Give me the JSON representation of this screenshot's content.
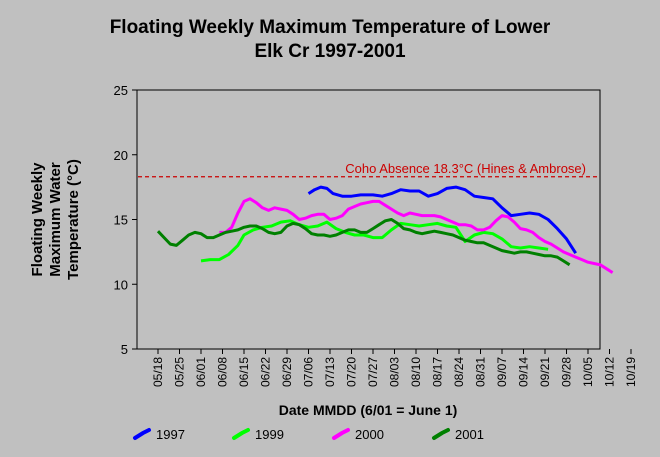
{
  "title_line1": "Floating Weekly Maximum Temperature of Lower",
  "title_line2": "Elk Cr 1997-2001",
  "chart_data": {
    "type": "line",
    "ylabel_lines": [
      "Floating Weekly",
      "Maximum Water",
      "Temperature (°C)"
    ],
    "xlabel": "Date MMDD (6/01 = June 1)",
    "x_ticks": [
      "05/18",
      "05/25",
      "06/01",
      "06/08",
      "06/15",
      "06/22",
      "06/29",
      "07/06",
      "07/13",
      "07/20",
      "07/27",
      "08/03",
      "08/10",
      "08/17",
      "08/24",
      "08/31",
      "09/07",
      "09/14",
      "09/21",
      "09/28",
      "10/05",
      "10/12",
      "10/19"
    ],
    "ylim": [
      5,
      25
    ],
    "y_ticks": [
      5,
      10,
      15,
      20,
      25
    ],
    "grid": false,
    "threshold": {
      "value": 18.3,
      "label": "Coho Absence 18.3°C (Hines & Ambrose)",
      "color": "#cc0000"
    },
    "legend_position": "bottom",
    "series": [
      {
        "name": "1997",
        "color": "#0000ff",
        "points": [
          [
            49,
            17.0
          ],
          [
            51,
            17.3
          ],
          [
            53,
            17.5
          ],
          [
            55,
            17.4
          ],
          [
            57,
            17.0
          ],
          [
            60,
            16.8
          ],
          [
            63,
            16.8
          ],
          [
            66,
            16.9
          ],
          [
            70,
            16.9
          ],
          [
            73,
            16.8
          ],
          [
            76,
            17.0
          ],
          [
            79,
            17.3
          ],
          [
            82,
            17.2
          ],
          [
            85,
            17.2
          ],
          [
            88,
            16.8
          ],
          [
            91,
            17.0
          ],
          [
            94,
            17.4
          ],
          [
            97,
            17.5
          ],
          [
            100,
            17.3
          ],
          [
            103,
            16.8
          ],
          [
            106,
            16.7
          ],
          [
            109,
            16.6
          ],
          [
            112,
            15.9
          ],
          [
            115,
            15.3
          ],
          [
            118,
            15.4
          ],
          [
            121,
            15.5
          ],
          [
            124,
            15.4
          ],
          [
            127,
            15.0
          ],
          [
            130,
            14.3
          ],
          [
            133,
            13.5
          ],
          [
            136,
            12.4
          ]
        ]
      },
      {
        "name": "1999",
        "color": "#00ff00",
        "points": [
          [
            14,
            11.8
          ],
          [
            17,
            11.9
          ],
          [
            20,
            11.9
          ],
          [
            23,
            12.3
          ],
          [
            26,
            13.0
          ],
          [
            28,
            13.8
          ],
          [
            31,
            14.2
          ],
          [
            34,
            14.4
          ],
          [
            37,
            14.5
          ],
          [
            40,
            14.8
          ],
          [
            43,
            14.9
          ],
          [
            46,
            14.6
          ],
          [
            49,
            14.4
          ],
          [
            52,
            14.5
          ],
          [
            55,
            14.8
          ],
          [
            58,
            14.3
          ],
          [
            61,
            14.0
          ],
          [
            64,
            13.8
          ],
          [
            67,
            13.8
          ],
          [
            70,
            13.6
          ],
          [
            73,
            13.6
          ],
          [
            76,
            14.2
          ],
          [
            79,
            14.7
          ],
          [
            82,
            14.6
          ],
          [
            85,
            14.5
          ],
          [
            88,
            14.6
          ],
          [
            91,
            14.7
          ],
          [
            94,
            14.5
          ],
          [
            97,
            14.4
          ],
          [
            100,
            13.3
          ],
          [
            103,
            13.8
          ],
          [
            106,
            14.0
          ],
          [
            109,
            13.9
          ],
          [
            112,
            13.5
          ],
          [
            115,
            12.9
          ],
          [
            118,
            12.8
          ],
          [
            121,
            12.9
          ],
          [
            124,
            12.8
          ],
          [
            127,
            12.7
          ]
        ]
      },
      {
        "name": "2000",
        "color": "#ff00ff",
        "points": [
          [
            20,
            14.0
          ],
          [
            22,
            14.0
          ],
          [
            24,
            14.4
          ],
          [
            26,
            15.5
          ],
          [
            28,
            16.4
          ],
          [
            30,
            16.6
          ],
          [
            32,
            16.3
          ],
          [
            34,
            15.9
          ],
          [
            36,
            15.7
          ],
          [
            38,
            15.9
          ],
          [
            40,
            15.8
          ],
          [
            42,
            15.7
          ],
          [
            44,
            15.4
          ],
          [
            46,
            15.0
          ],
          [
            48,
            15.1
          ],
          [
            50,
            15.3
          ],
          [
            52,
            15.4
          ],
          [
            54,
            15.4
          ],
          [
            56,
            15.0
          ],
          [
            58,
            15.1
          ],
          [
            60,
            15.3
          ],
          [
            62,
            15.8
          ],
          [
            64,
            16.0
          ],
          [
            66,
            16.2
          ],
          [
            68,
            16.3
          ],
          [
            70,
            16.4
          ],
          [
            72,
            16.4
          ],
          [
            74,
            16.1
          ],
          [
            76,
            15.8
          ],
          [
            78,
            15.5
          ],
          [
            80,
            15.3
          ],
          [
            82,
            15.5
          ],
          [
            84,
            15.4
          ],
          [
            86,
            15.3
          ],
          [
            88,
            15.3
          ],
          [
            90,
            15.3
          ],
          [
            92,
            15.2
          ],
          [
            94,
            15.0
          ],
          [
            96,
            14.8
          ],
          [
            98,
            14.6
          ],
          [
            100,
            14.6
          ],
          [
            102,
            14.5
          ],
          [
            104,
            14.2
          ],
          [
            106,
            14.2
          ],
          [
            108,
            14.4
          ],
          [
            110,
            14.9
          ],
          [
            112,
            15.3
          ],
          [
            114,
            15.2
          ],
          [
            116,
            14.8
          ],
          [
            118,
            14.3
          ],
          [
            120,
            14.2
          ],
          [
            122,
            14.0
          ],
          [
            124,
            13.6
          ],
          [
            126,
            13.3
          ],
          [
            128,
            13.1
          ],
          [
            130,
            12.8
          ],
          [
            132,
            12.5
          ],
          [
            134,
            12.3
          ],
          [
            136,
            12.1
          ],
          [
            138,
            11.9
          ],
          [
            140,
            11.7
          ],
          [
            142,
            11.6
          ],
          [
            144,
            11.5
          ],
          [
            146,
            11.2
          ],
          [
            148,
            10.9
          ]
        ]
      },
      {
        "name": "2001",
        "color": "#008000",
        "points": [
          [
            0,
            14.1
          ],
          [
            2,
            13.6
          ],
          [
            4,
            13.1
          ],
          [
            6,
            13.0
          ],
          [
            8,
            13.4
          ],
          [
            10,
            13.8
          ],
          [
            12,
            14.0
          ],
          [
            14,
            13.9
          ],
          [
            16,
            13.6
          ],
          [
            18,
            13.6
          ],
          [
            20,
            13.8
          ],
          [
            22,
            14.0
          ],
          [
            24,
            14.1
          ],
          [
            26,
            14.2
          ],
          [
            28,
            14.4
          ],
          [
            30,
            14.5
          ],
          [
            32,
            14.5
          ],
          [
            34,
            14.3
          ],
          [
            36,
            14.0
          ],
          [
            38,
            13.9
          ],
          [
            40,
            14.0
          ],
          [
            42,
            14.5
          ],
          [
            44,
            14.7
          ],
          [
            46,
            14.6
          ],
          [
            48,
            14.3
          ],
          [
            50,
            13.9
          ],
          [
            52,
            13.8
          ],
          [
            54,
            13.8
          ],
          [
            56,
            13.7
          ],
          [
            58,
            13.8
          ],
          [
            60,
            14.0
          ],
          [
            62,
            14.2
          ],
          [
            64,
            14.2
          ],
          [
            66,
            14.0
          ],
          [
            68,
            14.0
          ],
          [
            70,
            14.3
          ],
          [
            72,
            14.6
          ],
          [
            74,
            14.9
          ],
          [
            76,
            15.0
          ],
          [
            78,
            14.7
          ],
          [
            80,
            14.3
          ],
          [
            82,
            14.2
          ],
          [
            84,
            14.0
          ],
          [
            86,
            13.9
          ],
          [
            88,
            14.0
          ],
          [
            90,
            14.1
          ],
          [
            92,
            14.0
          ],
          [
            94,
            13.9
          ],
          [
            96,
            13.8
          ],
          [
            98,
            13.6
          ],
          [
            100,
            13.4
          ],
          [
            102,
            13.3
          ],
          [
            104,
            13.2
          ],
          [
            106,
            13.2
          ],
          [
            108,
            13.0
          ],
          [
            110,
            12.8
          ],
          [
            112,
            12.6
          ],
          [
            114,
            12.5
          ],
          [
            116,
            12.4
          ],
          [
            118,
            12.5
          ],
          [
            120,
            12.5
          ],
          [
            122,
            12.4
          ],
          [
            124,
            12.3
          ],
          [
            126,
            12.2
          ],
          [
            128,
            12.2
          ],
          [
            130,
            12.1
          ],
          [
            132,
            11.8
          ],
          [
            134,
            11.5
          ]
        ]
      }
    ]
  }
}
